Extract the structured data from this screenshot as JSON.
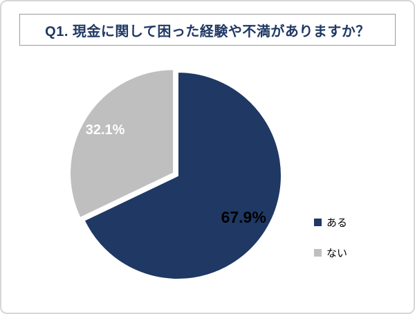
{
  "title": "Q1. 現金に関して困った経験や不満がありますか？",
  "colors": {
    "title_text": "#1f3864",
    "frame_border": "#d6d6d6",
    "title_border": "#9a9a9a",
    "slice_separator": "#ffffff"
  },
  "chart_data": {
    "type": "pie",
    "title": "Q1. 現金に関して困った経験や不満がありますか？",
    "direction": "clockwise",
    "start_angle_deg": 0,
    "legend_position": "right",
    "slices": [
      {
        "label": "ある",
        "value": 67.9,
        "text": "67.9%",
        "color": "#1f3864",
        "text_color": "#000000",
        "explode": 0
      },
      {
        "label": "ない",
        "value": 32.1,
        "text": "32.1%",
        "color": "#bfbfbf",
        "text_color": "#ffffff",
        "explode": 7
      }
    ]
  },
  "legend": {
    "items": [
      {
        "label": "ある",
        "color": "#1f3864"
      },
      {
        "label": "ない",
        "color": "#bfbfbf"
      }
    ]
  }
}
